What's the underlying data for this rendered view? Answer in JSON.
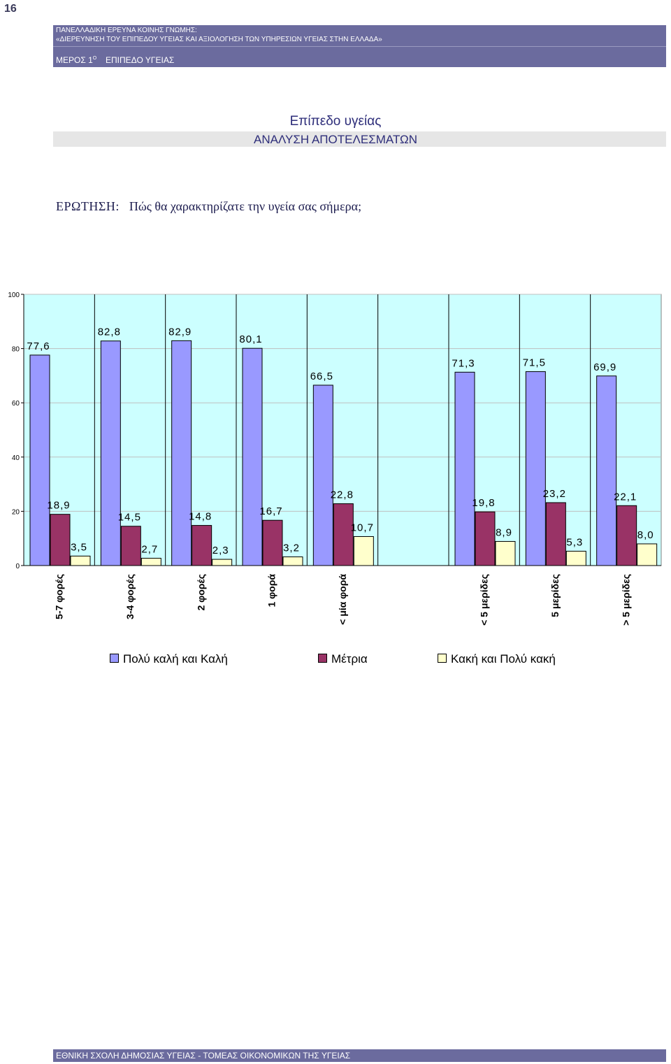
{
  "page_number": "16",
  "header": {
    "line1": "ΠΑΝΕΛΛΑΔΙΚΗ ΕΡΕΥΝΑ ΚΟΙΝΗΣ ΓΝΩΜΗΣ:",
    "line2": "«ΔΙΕΡΕΥΝΗΣΗ ΤΟΥ ΕΠΙΠΕΔΟΥ ΥΓΕΙΑΣ ΚΑΙ ΑΞΙΟΛΟΓΗΣΗ ΤΩΝ ΥΠΗΡΕΣΙΩΝ ΥΓΕΙΑΣ ΣΤΗΝ ΕΛΛΑΔΑ»",
    "part": "ΜΕΡΟΣ 1",
    "part_sup": "Ο",
    "section": "ΕΠΙΠΕΔΟ ΥΓΕΙΑΣ"
  },
  "title": "Επίπεδο υγείας",
  "subtitle": "ΑΝΑΛΥΣΗ ΑΠΟΤΕΛΕΣΜΑΤΩΝ",
  "question": {
    "label": "ΕΡΩΤΗΣΗ:",
    "text": "Πώς θα χαρακτηρίζατε την υγεία σας σήμερα;"
  },
  "chart_data": {
    "type": "bar",
    "categories": [
      "5-7 φορές",
      "3-4 φορές",
      "2 φορές",
      "1 φορά",
      "< μία φορά",
      "",
      "< 5 μερίδες",
      "5 μερίδες",
      "> 5 μερίδες"
    ],
    "series": [
      {
        "name": "Πολύ καλή και Καλή",
        "color": "#9999ff",
        "values": [
          77.6,
          82.8,
          82.9,
          80.1,
          66.5,
          null,
          71.3,
          71.5,
          69.9
        ],
        "labels": [
          "77,6",
          "82,8",
          "82,9",
          "80,1",
          "66,5",
          "",
          "71,3",
          "71,5",
          "69,9"
        ]
      },
      {
        "name": "Μέτρια",
        "color": "#993366",
        "values": [
          18.9,
          14.5,
          14.8,
          16.7,
          22.8,
          null,
          19.8,
          23.2,
          22.1
        ],
        "labels": [
          "18,9",
          "14,5",
          "14,8",
          "16,7",
          "22,8",
          "",
          "19,8",
          "23,2",
          "22,1"
        ]
      },
      {
        "name": "Κακή και Πολύ κακή",
        "color": "#ffffcc",
        "values": [
          3.5,
          2.7,
          2.3,
          3.2,
          10.7,
          null,
          8.9,
          5.3,
          8.0
        ],
        "labels": [
          "3,5",
          "2,7",
          "2,3",
          "3,2",
          "10,7",
          "",
          "8,9",
          "5,3",
          "8,0"
        ]
      }
    ],
    "ylim": [
      0,
      100
    ],
    "yticks": [
      0,
      20,
      40,
      60,
      80,
      100
    ],
    "plot_background": "#ccffff",
    "legend_position": "bottom"
  },
  "footer": "ΕΘΝΙΚΗ ΣΧΟΛΗ ΔΗΜΟΣΙΑΣ ΥΓΕΙΑΣ - ΤΟΜΕΑΣ ΟΙΚΟΝΟΜΙΚΩΝ ΤΗΣ ΥΓΕΙΑΣ"
}
